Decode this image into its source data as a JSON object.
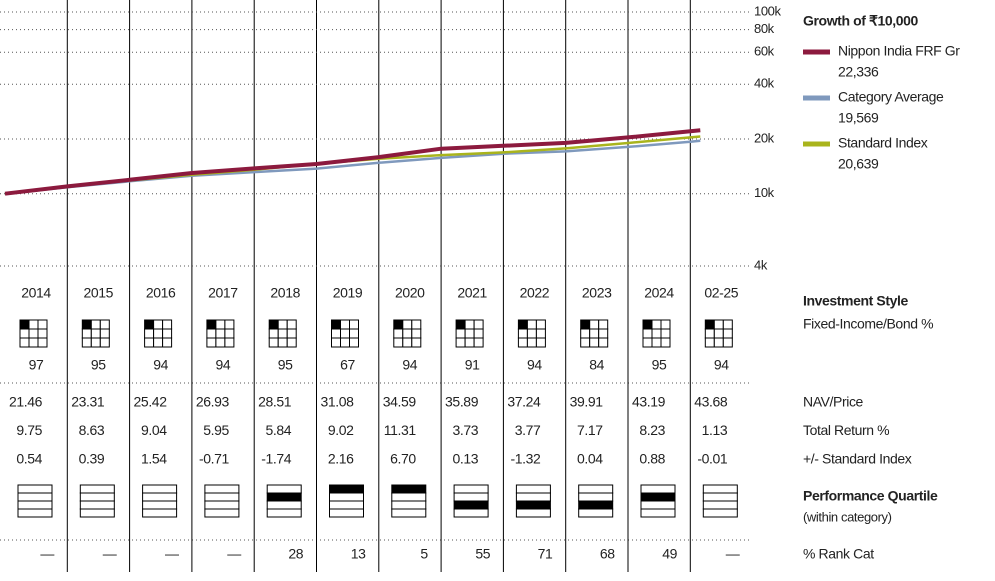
{
  "chart_data": {
    "type": "line",
    "title": "Growth of ₹10,000",
    "x": [
      2014,
      2015,
      2016,
      2017,
      2018,
      2019,
      2020,
      2021,
      2022,
      2023,
      2024,
      2025,
      2025.16
    ],
    "xlim": [
      2014,
      2026
    ],
    "series": [
      {
        "name": "Nippon India FRF Gr",
        "color": "#8c1a3e",
        "last_value_label": "22,336",
        "values": [
          10000,
          10975,
          11922,
          13000,
          13773,
          14578,
          15893,
          17690,
          18350,
          19042,
          20407,
          22087,
          22336
        ]
      },
      {
        "name": "Category Average",
        "color": "#7f99bd",
        "last_value_label": "19,569",
        "values": [
          10000,
          10850,
          11700,
          12550,
          13150,
          13750,
          14800,
          15750,
          16600,
          17100,
          18100,
          19300,
          19569
        ]
      },
      {
        "name": "Standard Index",
        "color": "#a9b41c",
        "last_value_label": "20,639",
        "values": [
          10000,
          10921,
          11821,
          12708,
          13554,
          14581,
          15582,
          16300,
          16887,
          17746,
          19011,
          20409,
          20639
        ]
      }
    ],
    "log_scale": true,
    "ylim": [
      4000,
      100000
    ],
    "yticks": [
      {
        "value": 4000,
        "label": "4k"
      },
      {
        "value": 10000,
        "label": "10k"
      },
      {
        "value": 20000,
        "label": "20k"
      },
      {
        "value": 40000,
        "label": "40k"
      },
      {
        "value": 60000,
        "label": "60k"
      },
      {
        "value": 80000,
        "label": "80k"
      },
      {
        "value": 100000,
        "label": "100k"
      }
    ],
    "grid": true
  },
  "table": {
    "years": [
      "2014",
      "2015",
      "2016",
      "2017",
      "2018",
      "2019",
      "2020",
      "2021",
      "2022",
      "2023",
      "2024",
      "02-25"
    ],
    "style_title": "Investment Style",
    "style_subtitle": "Fixed-Income/Bond %",
    "style_values": [
      "97",
      "95",
      "94",
      "94",
      "95",
      "67",
      "94",
      "91",
      "94",
      "84",
      "95",
      "94"
    ],
    "rows": [
      {
        "label": "NAV/Price",
        "values": [
          "21.46",
          "23.31",
          "25.42",
          "26.93",
          "28.51",
          "31.08",
          "34.59",
          "35.89",
          "37.24",
          "39.91",
          "43.19",
          "43.68"
        ]
      },
      {
        "label": "Total Return %",
        "values": [
          "9.75",
          "8.63",
          "9.04",
          "5.95",
          "5.84",
          "9.02",
          "11.31",
          "3.73",
          "3.77",
          "7.17",
          "8.23",
          "1.13"
        ]
      },
      {
        "label": "+/- Standard Index",
        "values": [
          "0.54",
          "0.39",
          "1.54",
          "-0.71",
          "-1.74",
          "2.16",
          "6.70",
          "0.13",
          "-1.32",
          "0.04",
          "0.88",
          "-0.01"
        ]
      }
    ],
    "quartile_title": "Performance Quartile",
    "quartile_subtitle": "(within category)",
    "quartiles": [
      null,
      null,
      null,
      null,
      2,
      1,
      1,
      3,
      3,
      3,
      2,
      null
    ],
    "rank_label": "% Rank Cat",
    "rank": [
      "—",
      "—",
      "—",
      "—",
      "28",
      "13",
      "5",
      "55",
      "71",
      "68",
      "49",
      "—"
    ]
  }
}
